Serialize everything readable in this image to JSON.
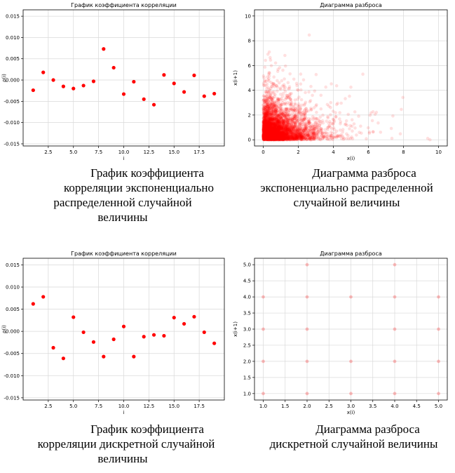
{
  "colors": {
    "point": "#ff0000",
    "grid": "#d9d9d9",
    "axis": "#000000"
  },
  "chart_data": [
    {
      "type": "scatter",
      "title": "График коэффициента корреляции",
      "xlabel": "i",
      "ylabel": "ρ(i)",
      "xlim": [
        0,
        20
      ],
      "ylim": [
        -0.0155,
        0.0165
      ],
      "xticks": [
        2.5,
        5.0,
        7.5,
        10.0,
        12.5,
        15.0,
        17.5
      ],
      "yticks": [
        -0.015,
        -0.01,
        -0.005,
        0.0,
        0.005,
        0.01,
        0.015
      ],
      "grid": true,
      "x": [
        1,
        2,
        3,
        4,
        5,
        6,
        7,
        8,
        9,
        10,
        11,
        12,
        13,
        14,
        15,
        16,
        17,
        18,
        19
      ],
      "y": [
        -0.0024,
        0.0018,
        0.0,
        -0.0015,
        -0.002,
        -0.0013,
        -0.0003,
        0.0073,
        0.0029,
        -0.0033,
        -0.0004,
        -0.0045,
        -0.0058,
        0.0012,
        -0.0008,
        -0.0028,
        0.0011,
        -0.0038,
        -0.0032
      ]
    },
    {
      "type": "scatter",
      "title": "Диаграмма разброса",
      "xlabel": "x(i)",
      "ylabel": "x(i+1)",
      "xlim": [
        -0.5,
        10.5
      ],
      "ylim": [
        -0.5,
        10.5
      ],
      "xticks": [
        0,
        2,
        4,
        6,
        8,
        10
      ],
      "yticks": [
        0,
        2,
        4,
        6,
        8,
        10
      ],
      "grid": true,
      "distribution": "exponential",
      "rate": 1
    },
    {
      "type": "scatter",
      "title": "График коэффициента корреляции",
      "xlabel": "i",
      "ylabel": "ρ(i)",
      "xlim": [
        0,
        20
      ],
      "ylim": [
        -0.0155,
        0.0165
      ],
      "xticks": [
        2.5,
        5.0,
        7.5,
        10.0,
        12.5,
        15.0,
        17.5
      ],
      "yticks": [
        -0.015,
        -0.01,
        -0.005,
        0.0,
        0.005,
        0.01,
        0.015
      ],
      "grid": true,
      "x": [
        1,
        2,
        3,
        4,
        5,
        6,
        7,
        8,
        9,
        10,
        11,
        12,
        13,
        14,
        15,
        16,
        17,
        18,
        19
      ],
      "y": [
        0.0062,
        0.0078,
        -0.0037,
        -0.0061,
        0.0032,
        -0.0002,
        -0.0024,
        -0.0057,
        -0.0018,
        0.0011,
        -0.0057,
        -0.0012,
        -0.0008,
        -0.001,
        0.0031,
        0.0017,
        0.0033,
        -0.0002,
        -0.0027
      ]
    },
    {
      "type": "scatter",
      "title": "Диаграмма разброса",
      "xlabel": "x(i)",
      "ylabel": "x(i+1)",
      "xlim": [
        0.8,
        5.2
      ],
      "ylim": [
        0.8,
        5.2
      ],
      "xticks": [
        1.0,
        1.5,
        2.0,
        2.5,
        3.0,
        3.5,
        4.0,
        4.5,
        5.0
      ],
      "yticks": [
        1.0,
        1.5,
        2.0,
        2.5,
        3.0,
        3.5,
        4.0,
        4.5,
        5.0
      ],
      "grid": true,
      "points": [
        [
          1,
          1
        ],
        [
          1,
          2
        ],
        [
          1,
          3
        ],
        [
          1,
          4
        ],
        [
          2,
          1
        ],
        [
          2,
          2
        ],
        [
          2,
          3
        ],
        [
          2,
          4
        ],
        [
          2,
          5
        ],
        [
          3,
          1
        ],
        [
          3,
          2
        ],
        [
          3,
          4
        ],
        [
          4,
          1
        ],
        [
          4,
          2
        ],
        [
          4,
          3
        ],
        [
          4,
          4
        ],
        [
          4,
          5
        ],
        [
          5,
          1
        ],
        [
          5,
          2
        ],
        [
          5,
          3
        ],
        [
          5,
          4
        ]
      ]
    }
  ],
  "captions": [
    [
      "График коэффициента",
      "корреляции экспоненциально",
      "распределенной случайной",
      "величины"
    ],
    [
      "Диаграмма разброса",
      "экспоненциально распределенной",
      "случайной величины"
    ],
    [
      "График коэффициента",
      "корреляции дискретной случайной",
      "величины"
    ],
    [
      "Диаграмма разброса",
      "дискретной случайной величины"
    ]
  ]
}
